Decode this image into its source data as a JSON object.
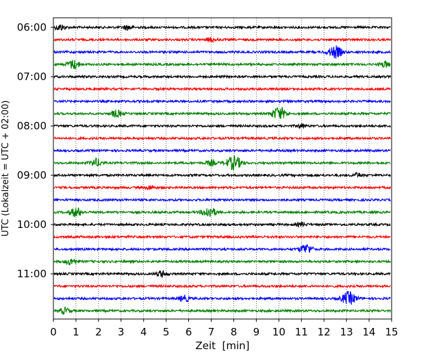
{
  "chart_data": {
    "type": "seismogram-helicorder",
    "title": "",
    "xlabel": "Zeit  [min]",
    "ylabel": "UTC (Lokalzeit = UTC + 02:00)",
    "xlim": [
      0,
      15
    ],
    "x_ticks": [
      "0",
      "1",
      "2",
      "3",
      "4",
      "5",
      "6",
      "7",
      "8",
      "9",
      "10",
      "11",
      "12",
      "13",
      "14",
      "15"
    ],
    "y_tick_labels": [
      "06:00",
      "07:00",
      "08:00",
      "09:00",
      "10:00",
      "11:00"
    ],
    "line_interval_min": 15,
    "trace_colors": [
      "#000000",
      "#ff0000",
      "#0000ff",
      "#008000"
    ],
    "grid": "vertical dotted at each minute",
    "traces": [
      {
        "start": "06:00",
        "events": [
          {
            "t": 0.3,
            "amp": 0.3
          },
          {
            "t": 3.3,
            "amp": 0.25
          }
        ]
      },
      {
        "start": "06:15",
        "events": [
          {
            "t": 7.0,
            "amp": 0.2
          }
        ]
      },
      {
        "start": "06:30",
        "events": [
          {
            "t": 12.5,
            "amp": 0.6
          }
        ]
      },
      {
        "start": "06:45",
        "events": [
          {
            "t": 0.9,
            "amp": 0.45
          },
          {
            "t": 14.7,
            "amp": 0.3
          }
        ]
      },
      {
        "start": "07:00",
        "events": []
      },
      {
        "start": "07:15",
        "events": []
      },
      {
        "start": "07:30",
        "events": []
      },
      {
        "start": "07:45",
        "events": [
          {
            "t": 2.8,
            "amp": 0.35
          },
          {
            "t": 10.0,
            "amp": 0.65
          }
        ]
      },
      {
        "start": "08:00",
        "events": [
          {
            "t": 11.0,
            "amp": 0.2
          }
        ]
      },
      {
        "start": "08:15",
        "events": []
      },
      {
        "start": "08:30",
        "events": []
      },
      {
        "start": "08:45",
        "events": [
          {
            "t": 1.9,
            "amp": 0.4
          },
          {
            "t": 7.0,
            "amp": 0.25
          },
          {
            "t": 8.0,
            "amp": 0.7
          }
        ]
      },
      {
        "start": "09:00",
        "events": [
          {
            "t": 13.5,
            "amp": 0.2
          }
        ]
      },
      {
        "start": "09:15",
        "events": [
          {
            "t": 4.3,
            "amp": 0.2
          }
        ]
      },
      {
        "start": "09:30",
        "events": []
      },
      {
        "start": "09:45",
        "events": [
          {
            "t": 1.0,
            "amp": 0.45
          },
          {
            "t": 6.9,
            "amp": 0.55
          }
        ]
      },
      {
        "start": "10:00",
        "events": [
          {
            "t": 11.0,
            "amp": 0.2
          }
        ]
      },
      {
        "start": "10:15",
        "events": []
      },
      {
        "start": "10:30",
        "events": [
          {
            "t": 11.2,
            "amp": 0.5
          }
        ]
      },
      {
        "start": "10:45",
        "events": [
          {
            "t": 0.8,
            "amp": 0.35
          }
        ]
      },
      {
        "start": "11:00",
        "events": [
          {
            "t": 4.8,
            "amp": 0.3
          }
        ]
      },
      {
        "start": "11:15",
        "events": []
      },
      {
        "start": "11:30",
        "events": [
          {
            "t": 5.8,
            "amp": 0.3
          },
          {
            "t": 13.1,
            "amp": 0.65
          }
        ]
      },
      {
        "start": "11:45",
        "events": [
          {
            "t": 0.5,
            "amp": 0.3
          }
        ]
      }
    ]
  }
}
